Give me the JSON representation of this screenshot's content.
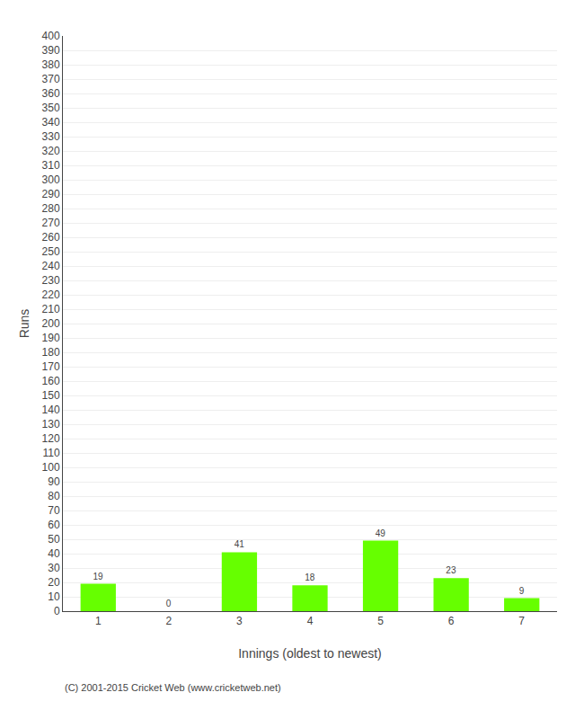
{
  "chart_data": {
    "type": "bar",
    "categories": [
      "1",
      "2",
      "3",
      "4",
      "5",
      "6",
      "7"
    ],
    "values": [
      19,
      0,
      41,
      18,
      49,
      23,
      9
    ],
    "color": "#66ff00",
    "xlabel": "Innings (oldest to newest)",
    "ylabel": "Runs",
    "ylim": [
      0,
      400
    ],
    "yticks": [
      0,
      10,
      20,
      30,
      40,
      50,
      60,
      70,
      80,
      90,
      100,
      110,
      120,
      130,
      140,
      150,
      160,
      170,
      180,
      190,
      200,
      210,
      220,
      230,
      240,
      250,
      260,
      270,
      280,
      290,
      300,
      310,
      320,
      330,
      340,
      350,
      360,
      370,
      380,
      390,
      400
    ],
    "grid": true,
    "data_labels": true,
    "annotations": [
      "(C) 2001-2015 Cricket Web (www.cricketweb.net)"
    ]
  }
}
